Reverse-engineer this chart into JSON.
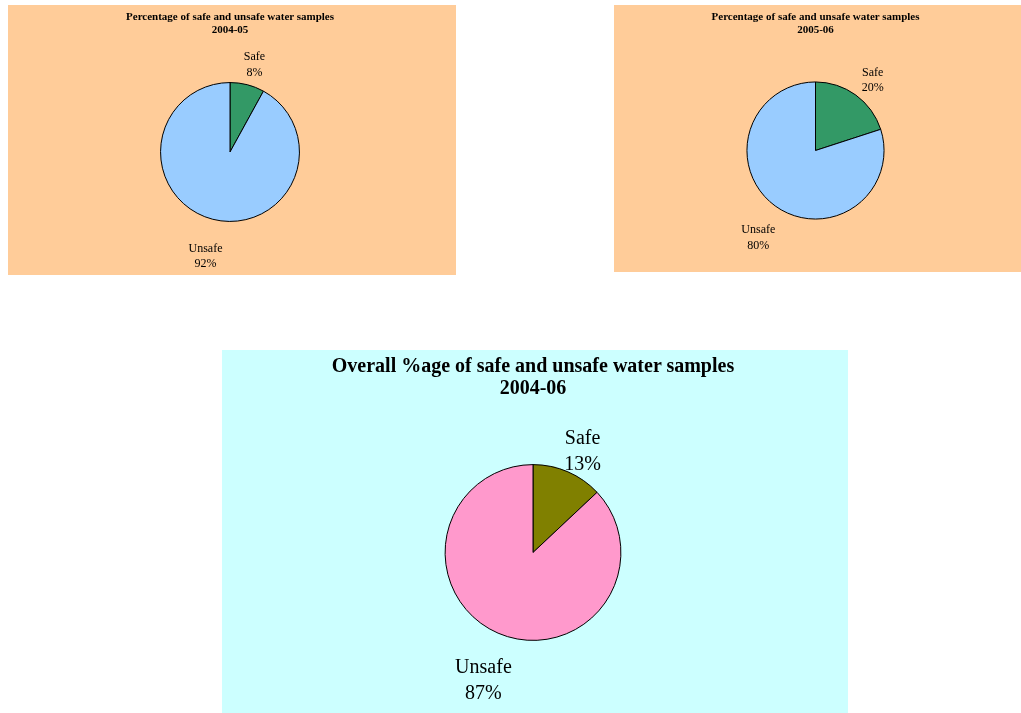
{
  "chart_data": [
    {
      "type": "pie",
      "title": [
        "Percentage of safe and unsafe water samples",
        "2004-05"
      ],
      "categories": [
        "Safe",
        "Unsafe"
      ],
      "values": [
        8,
        92
      ],
      "value_labels": [
        "8%",
        "92%"
      ],
      "colors": [
        "#339966",
        "#99ccff"
      ],
      "legend": false
    },
    {
      "type": "pie",
      "title": [
        "Percentage of safe and unsafe water samples",
        "2005-06"
      ],
      "categories": [
        "Safe",
        "Unsafe"
      ],
      "values": [
        20,
        80
      ],
      "value_labels": [
        "20%",
        "80%"
      ],
      "colors": [
        "#339966",
        "#99ccff"
      ],
      "legend": false
    },
    {
      "type": "pie",
      "title": [
        "Overall %age of safe and unsafe water samples",
        "2004-06"
      ],
      "categories": [
        "Safe",
        "Unsafe"
      ],
      "values": [
        13,
        87
      ],
      "value_labels": [
        "13%",
        "87%"
      ],
      "colors": [
        "#808000",
        "#ff99cc"
      ],
      "legend": false
    }
  ]
}
